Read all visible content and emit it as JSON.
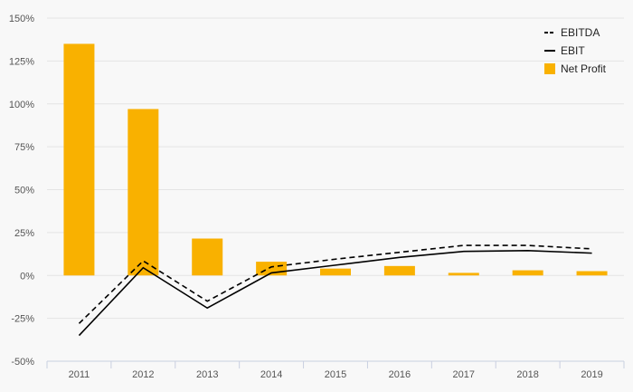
{
  "chart_data": {
    "type": "bar",
    "categories": [
      "2011",
      "2012",
      "2013",
      "2014",
      "2015",
      "2016",
      "2017",
      "2018",
      "2019"
    ],
    "ylim": [
      -50,
      150
    ],
    "yticks": [
      -50,
      -25,
      0,
      25,
      50,
      75,
      100,
      125,
      150
    ],
    "ytick_labels": [
      "-50%",
      "-25%",
      "0%",
      "25%",
      "50%",
      "75%",
      "100%",
      "125%",
      "150%"
    ],
    "grid": true,
    "legend_position": "top-right",
    "series": [
      {
        "name": "EBITDA",
        "kind": "line",
        "style": "dashed",
        "color": "#000000",
        "values": [
          -28,
          8.5,
          -15,
          5,
          9.5,
          13.5,
          17.5,
          17.5,
          15.5
        ]
      },
      {
        "name": "EBIT",
        "kind": "line",
        "style": "solid",
        "color": "#000000",
        "values": [
          -35,
          4.5,
          -19,
          1.5,
          6,
          10.5,
          14,
          14.5,
          13
        ]
      },
      {
        "name": "Net Profit",
        "kind": "bar",
        "color": "#F9B100",
        "values": [
          135,
          97,
          21.5,
          8,
          4,
          5.5,
          1.5,
          3,
          2.5
        ]
      }
    ]
  }
}
